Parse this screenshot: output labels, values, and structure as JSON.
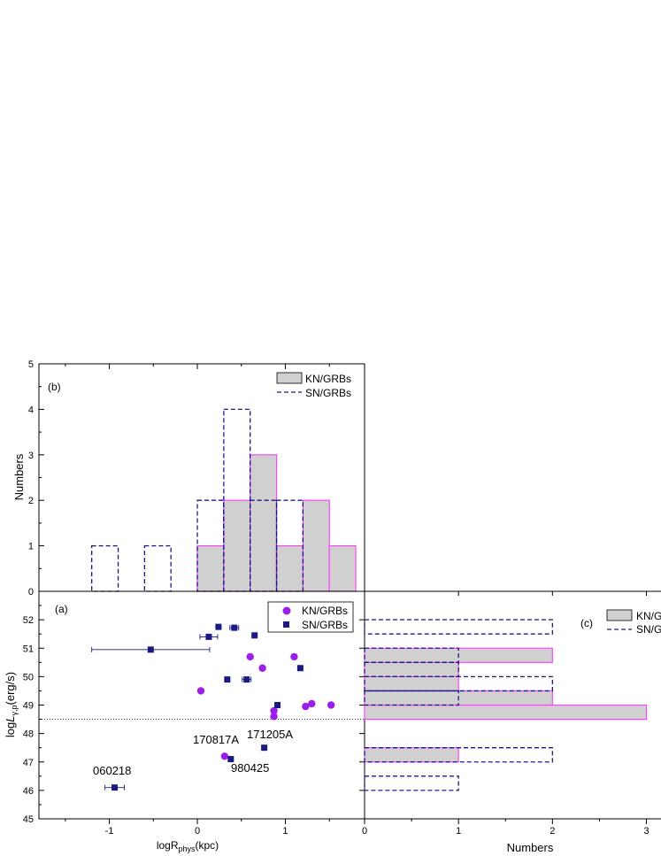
{
  "colors": {
    "kn": "#9b1fe8",
    "kn_edge": "#ff44ff",
    "kn_fill": "#d0d0d0",
    "sn": "#1a1a80",
    "axis": "#000000"
  },
  "panel_b": {
    "label": "(b)",
    "ylabel": "Numbers",
    "legend": {
      "kn": "KN/GRBs",
      "sn": "SN/GRBs"
    },
    "yticks": [
      "0",
      "1",
      "2",
      "3",
      "4",
      "5"
    ]
  },
  "panel_a": {
    "label": "(a)",
    "xlabel_main": "logR",
    "xlabel_sub": "phys",
    "xlabel_unit": "(kpc)",
    "ylabel_main": "log",
    "ylabel_var": "L",
    "ylabel_sub": "γ,p",
    "ylabel_unit": "(erg/s)",
    "legend": {
      "kn": "KN/GRBs",
      "sn": "SN/GRBs"
    },
    "xticks": [
      "-1",
      "0",
      "1"
    ],
    "yticks": [
      "45",
      "46",
      "47",
      "48",
      "49",
      "50",
      "51",
      "52"
    ],
    "annotations": [
      "170817A",
      "171205A",
      "980425",
      "060218"
    ]
  },
  "panel_c": {
    "label": "(c)",
    "xlabel": "Numbers",
    "legend": {
      "kn": "KN/G",
      "sn": "SN/G"
    },
    "xticks": [
      "0",
      "1",
      "2",
      "3"
    ]
  },
  "chart_data": [
    {
      "id": "b",
      "type": "bar",
      "title": "(b)",
      "xlabel": "",
      "ylabel": "Numbers",
      "ylim": [
        0,
        5
      ],
      "xlim": [
        -1.8,
        1.9
      ],
      "bin_width": 0.3,
      "series": [
        {
          "name": "KN/GRBs",
          "bin_starts": [
            0.0,
            0.3,
            0.6,
            0.9,
            1.2,
            1.5
          ],
          "values": [
            1,
            2,
            3,
            1,
            2,
            1
          ]
        },
        {
          "name": "SN/GRBs",
          "bin_starts": [
            -1.2,
            -0.6,
            0.0,
            0.3,
            0.6,
            0.9
          ],
          "values": [
            1,
            1,
            2,
            4,
            2,
            2
          ]
        }
      ]
    },
    {
      "id": "a",
      "type": "scatter",
      "title": "(a)",
      "xlabel": "logR_phys(kpc)",
      "ylabel": "logL_γ,p(erg/s)",
      "xlim": [
        -1.8,
        1.9
      ],
      "ylim": [
        45,
        53
      ],
      "reference_line_y": 48.5,
      "series": [
        {
          "name": "KN/GRBs",
          "x": [
            0.04,
            0.6,
            0.74,
            1.1,
            0.87,
            0.87,
            1.23,
            1.3,
            1.52,
            0.31
          ],
          "y": [
            49.5,
            50.7,
            50.3,
            50.7,
            48.8,
            48.6,
            48.95,
            49.05,
            49.0,
            47.2
          ]
        },
        {
          "name": "SN/GRBs",
          "x": [
            0.24,
            0.42,
            0.13,
            0.65,
            -0.53,
            0.34,
            0.56,
            1.17,
            0.91,
            0.76,
            0.38,
            -0.94
          ],
          "y": [
            51.75,
            51.72,
            51.4,
            51.45,
            50.95,
            49.9,
            49.9,
            50.3,
            49.0,
            47.5,
            47.1,
            46.1
          ],
          "xerr": [
            0,
            0.05,
            0.1,
            0,
            0.67,
            0,
            0.05,
            0,
            0,
            0,
            0,
            0.11
          ]
        }
      ],
      "annotations": [
        {
          "text": "170817A",
          "x": 0.31,
          "y": 47.2
        },
        {
          "text": "171205A",
          "x": 0.76,
          "y": 47.5
        },
        {
          "text": "980425",
          "x": 0.38,
          "y": 47.1
        },
        {
          "text": "060218",
          "x": -0.94,
          "y": 46.1
        }
      ]
    },
    {
      "id": "c",
      "type": "bar",
      "orientation": "horizontal",
      "title": "(c)",
      "xlabel": "Numbers",
      "ylabel": "",
      "xlim": [
        0,
        3.2
      ],
      "ylim": [
        45,
        53
      ],
      "bin_height": 0.5,
      "series": [
        {
          "name": "KN/GRBs",
          "bin_starts": [
            48.5,
            49.0,
            49.5,
            50.0,
            50.5,
            47.0
          ],
          "values": [
            3,
            2,
            1,
            1,
            2,
            1
          ]
        },
        {
          "name": "SN/GRBs",
          "bin_starts": [
            51.5,
            50.5,
            50.0,
            49.5,
            49.0,
            47.0,
            46.0
          ],
          "values": [
            2,
            1,
            1,
            2,
            1,
            2,
            1
          ]
        }
      ]
    }
  ]
}
